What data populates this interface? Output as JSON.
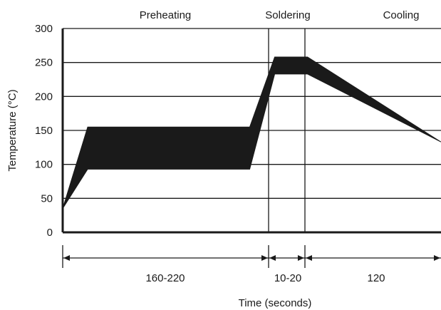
{
  "chart_data": {
    "type": "area",
    "title": "",
    "xlabel": "Time (seconds)",
    "ylabel": "Temperature (°C)",
    "ylim": [
      0,
      300
    ],
    "y_ticks": [
      "0",
      "50",
      "100",
      "150",
      "200",
      "250",
      "300"
    ],
    "grid": "horizontal",
    "phases": [
      "Preheating",
      "Soldering",
      "Cooling"
    ],
    "durations": [
      "160-220",
      "10-20",
      "120"
    ],
    "x": [
      0,
      35,
      43,
      250,
      262,
      297,
      300,
      340,
      343,
      530
    ],
    "upper": [
      35,
      155,
      155,
      155,
      155,
      258,
      258,
      258,
      258,
      133
    ],
    "lower": [
      35,
      93,
      93,
      93,
      93,
      233,
      233,
      233,
      233,
      133
    ],
    "colors": {
      "band": "#1a1a1a",
      "grid": "#1a1a1a",
      "background": "#ffffff"
    }
  }
}
